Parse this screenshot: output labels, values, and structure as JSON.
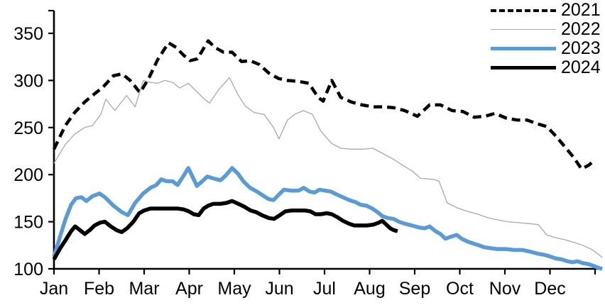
{
  "chart_data": {
    "type": "line",
    "title": "",
    "x_axis": {
      "tick_labels": [
        "Jan",
        "Feb",
        "Mar",
        "Apr",
        "May",
        "Jun",
        "Jul",
        "Aug",
        "Sep",
        "Oct",
        "Nov",
        "Dec"
      ],
      "range_months": [
        0,
        12.2
      ],
      "grid": false
    },
    "y_axis": {
      "ticks": [
        100,
        150,
        200,
        250,
        300,
        350
      ],
      "range": [
        100,
        375
      ],
      "grid": false
    },
    "legend": {
      "position": "top-right"
    },
    "axis_color": "#000000",
    "series": [
      {
        "name": "2021",
        "color": "#000000",
        "style": "dashed",
        "width": 4.5,
        "points": [
          [
            0,
            227
          ],
          [
            0.25,
            252
          ],
          [
            0.46,
            266
          ],
          [
            0.68,
            277
          ],
          [
            0.88,
            285
          ],
          [
            1.09,
            293
          ],
          [
            1.32,
            305
          ],
          [
            1.51,
            307
          ],
          [
            1.69,
            300
          ],
          [
            1.91,
            287
          ],
          [
            2.11,
            303
          ],
          [
            2.3,
            322
          ],
          [
            2.54,
            340
          ],
          [
            2.71,
            335
          ],
          [
            2.87,
            327
          ],
          [
            3.02,
            321
          ],
          [
            3.18,
            323
          ],
          [
            3.42,
            342
          ],
          [
            3.57,
            335
          ],
          [
            3.76,
            330
          ],
          [
            3.95,
            330
          ],
          [
            4.16,
            320
          ],
          [
            4.35,
            321
          ],
          [
            4.55,
            317
          ],
          [
            4.76,
            308
          ],
          [
            4.98,
            302
          ],
          [
            5.18,
            300
          ],
          [
            5.42,
            299
          ],
          [
            5.65,
            297
          ],
          [
            5.86,
            282
          ],
          [
            5.97,
            278
          ],
          [
            6.16,
            300
          ],
          [
            6.36,
            282
          ],
          [
            6.6,
            277
          ],
          [
            6.83,
            274
          ],
          [
            7.07,
            272
          ],
          [
            7.31,
            272
          ],
          [
            7.54,
            271
          ],
          [
            7.78,
            268
          ],
          [
            8.06,
            262
          ],
          [
            8.33,
            274
          ],
          [
            8.57,
            274
          ],
          [
            8.83,
            268
          ],
          [
            9.07,
            267
          ],
          [
            9.32,
            261
          ],
          [
            9.56,
            262
          ],
          [
            9.78,
            265
          ],
          [
            10.03,
            260
          ],
          [
            10.27,
            258
          ],
          [
            10.49,
            258
          ],
          [
            10.72,
            254
          ],
          [
            10.93,
            251
          ],
          [
            11.13,
            241
          ],
          [
            11.34,
            229
          ],
          [
            11.53,
            218
          ],
          [
            11.7,
            206
          ],
          [
            11.86,
            210
          ],
          [
            12,
            216
          ]
        ]
      },
      {
        "name": "2022",
        "color": "#a9a9a9",
        "style": "solid",
        "width": 1.3,
        "points": [
          [
            0,
            212
          ],
          [
            0.25,
            232
          ],
          [
            0.46,
            243
          ],
          [
            0.68,
            250
          ],
          [
            0.85,
            252
          ],
          [
            1.04,
            264
          ],
          [
            1.15,
            280
          ],
          [
            1.35,
            268
          ],
          [
            1.61,
            284
          ],
          [
            1.8,
            272
          ],
          [
            1.98,
            300
          ],
          [
            2.14,
            298
          ],
          [
            2.3,
            297
          ],
          [
            2.46,
            300
          ],
          [
            2.63,
            298
          ],
          [
            2.79,
            292
          ],
          [
            2.98,
            297
          ],
          [
            3.17,
            288
          ],
          [
            3.34,
            280
          ],
          [
            3.45,
            276
          ],
          [
            3.65,
            290
          ],
          [
            3.89,
            303
          ],
          [
            4.08,
            285
          ],
          [
            4.24,
            273
          ],
          [
            4.44,
            266
          ],
          [
            4.66,
            264
          ],
          [
            4.87,
            250
          ],
          [
            4.99,
            238
          ],
          [
            5.18,
            258
          ],
          [
            5.34,
            264
          ],
          [
            5.53,
            268
          ],
          [
            5.73,
            264
          ],
          [
            5.92,
            246
          ],
          [
            6.16,
            233
          ],
          [
            6.36,
            228
          ],
          [
            6.6,
            227
          ],
          [
            6.87,
            227
          ],
          [
            7.07,
            228
          ],
          [
            7.31,
            222
          ],
          [
            7.54,
            216
          ],
          [
            7.73,
            210
          ],
          [
            7.94,
            204
          ],
          [
            8.13,
            196
          ],
          [
            8.41,
            195
          ],
          [
            8.54,
            193
          ],
          [
            8.72,
            170
          ],
          [
            8.93,
            165
          ],
          [
            9.17,
            161
          ],
          [
            9.4,
            158
          ],
          [
            9.64,
            154
          ],
          [
            9.83,
            152
          ],
          [
            10.06,
            150
          ],
          [
            10.3,
            149
          ],
          [
            10.54,
            148
          ],
          [
            10.74,
            147
          ],
          [
            10.93,
            136
          ],
          [
            11.13,
            133
          ],
          [
            11.32,
            131
          ],
          [
            11.53,
            128
          ],
          [
            11.72,
            125
          ],
          [
            11.91,
            121
          ],
          [
            12.06,
            116
          ],
          [
            12.16,
            112
          ]
        ]
      },
      {
        "name": "2023",
        "color": "#5b9bd5",
        "style": "solid",
        "width": 5.5,
        "points": [
          [
            0,
            113
          ],
          [
            0.14,
            135
          ],
          [
            0.25,
            152
          ],
          [
            0.38,
            168
          ],
          [
            0.49,
            175
          ],
          [
            0.61,
            176
          ],
          [
            0.72,
            172
          ],
          [
            0.85,
            177
          ],
          [
            1.01,
            180
          ],
          [
            1.13,
            176
          ],
          [
            1.32,
            167
          ],
          [
            1.51,
            160
          ],
          [
            1.64,
            157
          ],
          [
            1.8,
            170
          ],
          [
            1.98,
            180
          ],
          [
            2.14,
            186
          ],
          [
            2.27,
            189
          ],
          [
            2.38,
            195
          ],
          [
            2.5,
            193
          ],
          [
            2.63,
            193
          ],
          [
            2.74,
            189
          ],
          [
            2.85,
            197
          ],
          [
            2.98,
            207
          ],
          [
            3.09,
            196
          ],
          [
            3.17,
            188
          ],
          [
            3.29,
            193
          ],
          [
            3.4,
            198
          ],
          [
            3.53,
            196
          ],
          [
            3.69,
            194
          ],
          [
            3.81,
            199
          ],
          [
            3.95,
            207
          ],
          [
            4.08,
            201
          ],
          [
            4.2,
            193
          ],
          [
            4.35,
            186
          ],
          [
            4.5,
            182
          ],
          [
            4.63,
            178
          ],
          [
            4.76,
            174
          ],
          [
            4.87,
            173
          ],
          [
            4.99,
            179
          ],
          [
            5.1,
            184
          ],
          [
            5.26,
            183
          ],
          [
            5.42,
            183
          ],
          [
            5.54,
            186
          ],
          [
            5.67,
            182
          ],
          [
            5.78,
            181
          ],
          [
            5.89,
            184
          ],
          [
            6.02,
            183
          ],
          [
            6.14,
            182
          ],
          [
            6.27,
            179
          ],
          [
            6.41,
            176
          ],
          [
            6.55,
            173
          ],
          [
            6.68,
            171
          ],
          [
            6.8,
            168
          ],
          [
            6.93,
            167
          ],
          [
            7.06,
            164
          ],
          [
            7.18,
            160
          ],
          [
            7.28,
            156
          ],
          [
            7.4,
            154
          ],
          [
            7.53,
            153
          ],
          [
            7.65,
            150
          ],
          [
            7.78,
            148
          ],
          [
            7.94,
            146
          ],
          [
            8.09,
            144
          ],
          [
            8.22,
            143
          ],
          [
            8.33,
            145
          ],
          [
            8.46,
            140
          ],
          [
            8.57,
            137
          ],
          [
            8.68,
            132
          ],
          [
            8.8,
            134
          ],
          [
            8.93,
            136
          ],
          [
            9.04,
            132
          ],
          [
            9.17,
            129
          ],
          [
            9.29,
            127
          ],
          [
            9.42,
            125
          ],
          [
            9.54,
            123
          ],
          [
            9.67,
            122
          ],
          [
            9.83,
            121
          ],
          [
            10.02,
            121
          ],
          [
            10.2,
            120
          ],
          [
            10.39,
            120
          ],
          [
            10.58,
            118
          ],
          [
            10.74,
            116
          ],
          [
            10.87,
            115
          ],
          [
            11.01,
            113
          ],
          [
            11.13,
            111
          ],
          [
            11.26,
            110
          ],
          [
            11.39,
            108
          ],
          [
            11.5,
            107
          ],
          [
            11.61,
            108
          ],
          [
            11.73,
            106
          ],
          [
            11.86,
            105
          ],
          [
            11.97,
            103
          ],
          [
            12.08,
            101
          ],
          [
            12.16,
            100
          ]
        ]
      },
      {
        "name": "2024",
        "color": "#000000",
        "style": "solid",
        "width": 5.5,
        "points": [
          [
            0,
            110
          ],
          [
            0.14,
            122
          ],
          [
            0.25,
            130
          ],
          [
            0.38,
            140
          ],
          [
            0.47,
            145
          ],
          [
            0.58,
            141
          ],
          [
            0.68,
            137
          ],
          [
            0.79,
            141
          ],
          [
            0.9,
            146
          ],
          [
            1.02,
            149
          ],
          [
            1.13,
            150
          ],
          [
            1.26,
            145
          ],
          [
            1.39,
            141
          ],
          [
            1.5,
            139
          ],
          [
            1.62,
            143
          ],
          [
            1.76,
            150
          ],
          [
            1.89,
            159
          ],
          [
            2,
            162
          ],
          [
            2.14,
            164
          ],
          [
            2.35,
            164
          ],
          [
            2.55,
            164
          ],
          [
            2.74,
            164
          ],
          [
            2.88,
            163
          ],
          [
            2.99,
            161
          ],
          [
            3.1,
            158
          ],
          [
            3.21,
            157
          ],
          [
            3.32,
            164
          ],
          [
            3.42,
            167
          ],
          [
            3.53,
            169
          ],
          [
            3.69,
            169
          ],
          [
            3.83,
            170
          ],
          [
            3.95,
            172
          ],
          [
            4.09,
            169
          ],
          [
            4.22,
            166
          ],
          [
            4.36,
            162
          ],
          [
            4.49,
            160
          ],
          [
            4.61,
            157
          ],
          [
            4.76,
            154
          ],
          [
            4.88,
            153
          ],
          [
            5.01,
            157
          ],
          [
            5.13,
            161
          ],
          [
            5.28,
            162
          ],
          [
            5.42,
            162
          ],
          [
            5.56,
            162
          ],
          [
            5.69,
            161
          ],
          [
            5.8,
            158
          ],
          [
            5.92,
            158
          ],
          [
            6.05,
            159
          ],
          [
            6.16,
            158
          ],
          [
            6.28,
            155
          ],
          [
            6.41,
            151
          ],
          [
            6.54,
            148
          ],
          [
            6.66,
            146
          ],
          [
            6.8,
            146
          ],
          [
            6.94,
            146
          ],
          [
            7.09,
            147
          ],
          [
            7.2,
            149
          ],
          [
            7.28,
            151
          ],
          [
            7.37,
            147
          ],
          [
            7.46,
            143
          ],
          [
            7.54,
            141
          ],
          [
            7.62,
            140
          ]
        ]
      }
    ]
  }
}
